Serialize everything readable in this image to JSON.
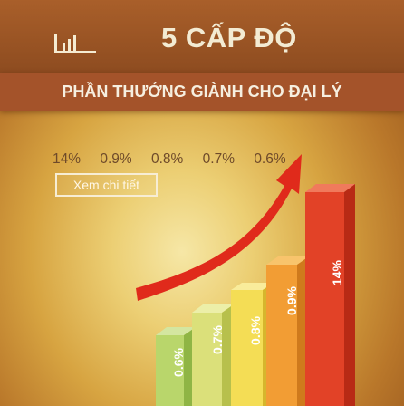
{
  "header": {
    "title": "5 CẤP ĐỘ",
    "subtitle": "PHẦN THƯỞNG GIÀNH CHO ĐẠI LÝ",
    "icon": "bar-chart-icon"
  },
  "rewards": {
    "percentages": [
      "14%",
      "0.9%",
      "0.8%",
      "0.7%",
      "0.6%"
    ]
  },
  "actions": {
    "detail_label": "Xem chi tiết"
  },
  "bars": [
    {
      "label": "0.6%",
      "value": 0.6
    },
    {
      "label": "0.7%",
      "value": 0.7
    },
    {
      "label": "0.8%",
      "value": 0.8
    },
    {
      "label": "0.9%",
      "value": 0.9
    },
    {
      "label": "14%",
      "value": 14
    }
  ],
  "colors": {
    "bar_green": "#b9d66b",
    "bar_yellow_green": "#dbe07a",
    "bar_yellow": "#f4dd55",
    "bar_orange": "#f29d34",
    "bar_red": "#e24227",
    "arrow": "#e02a1b"
  }
}
